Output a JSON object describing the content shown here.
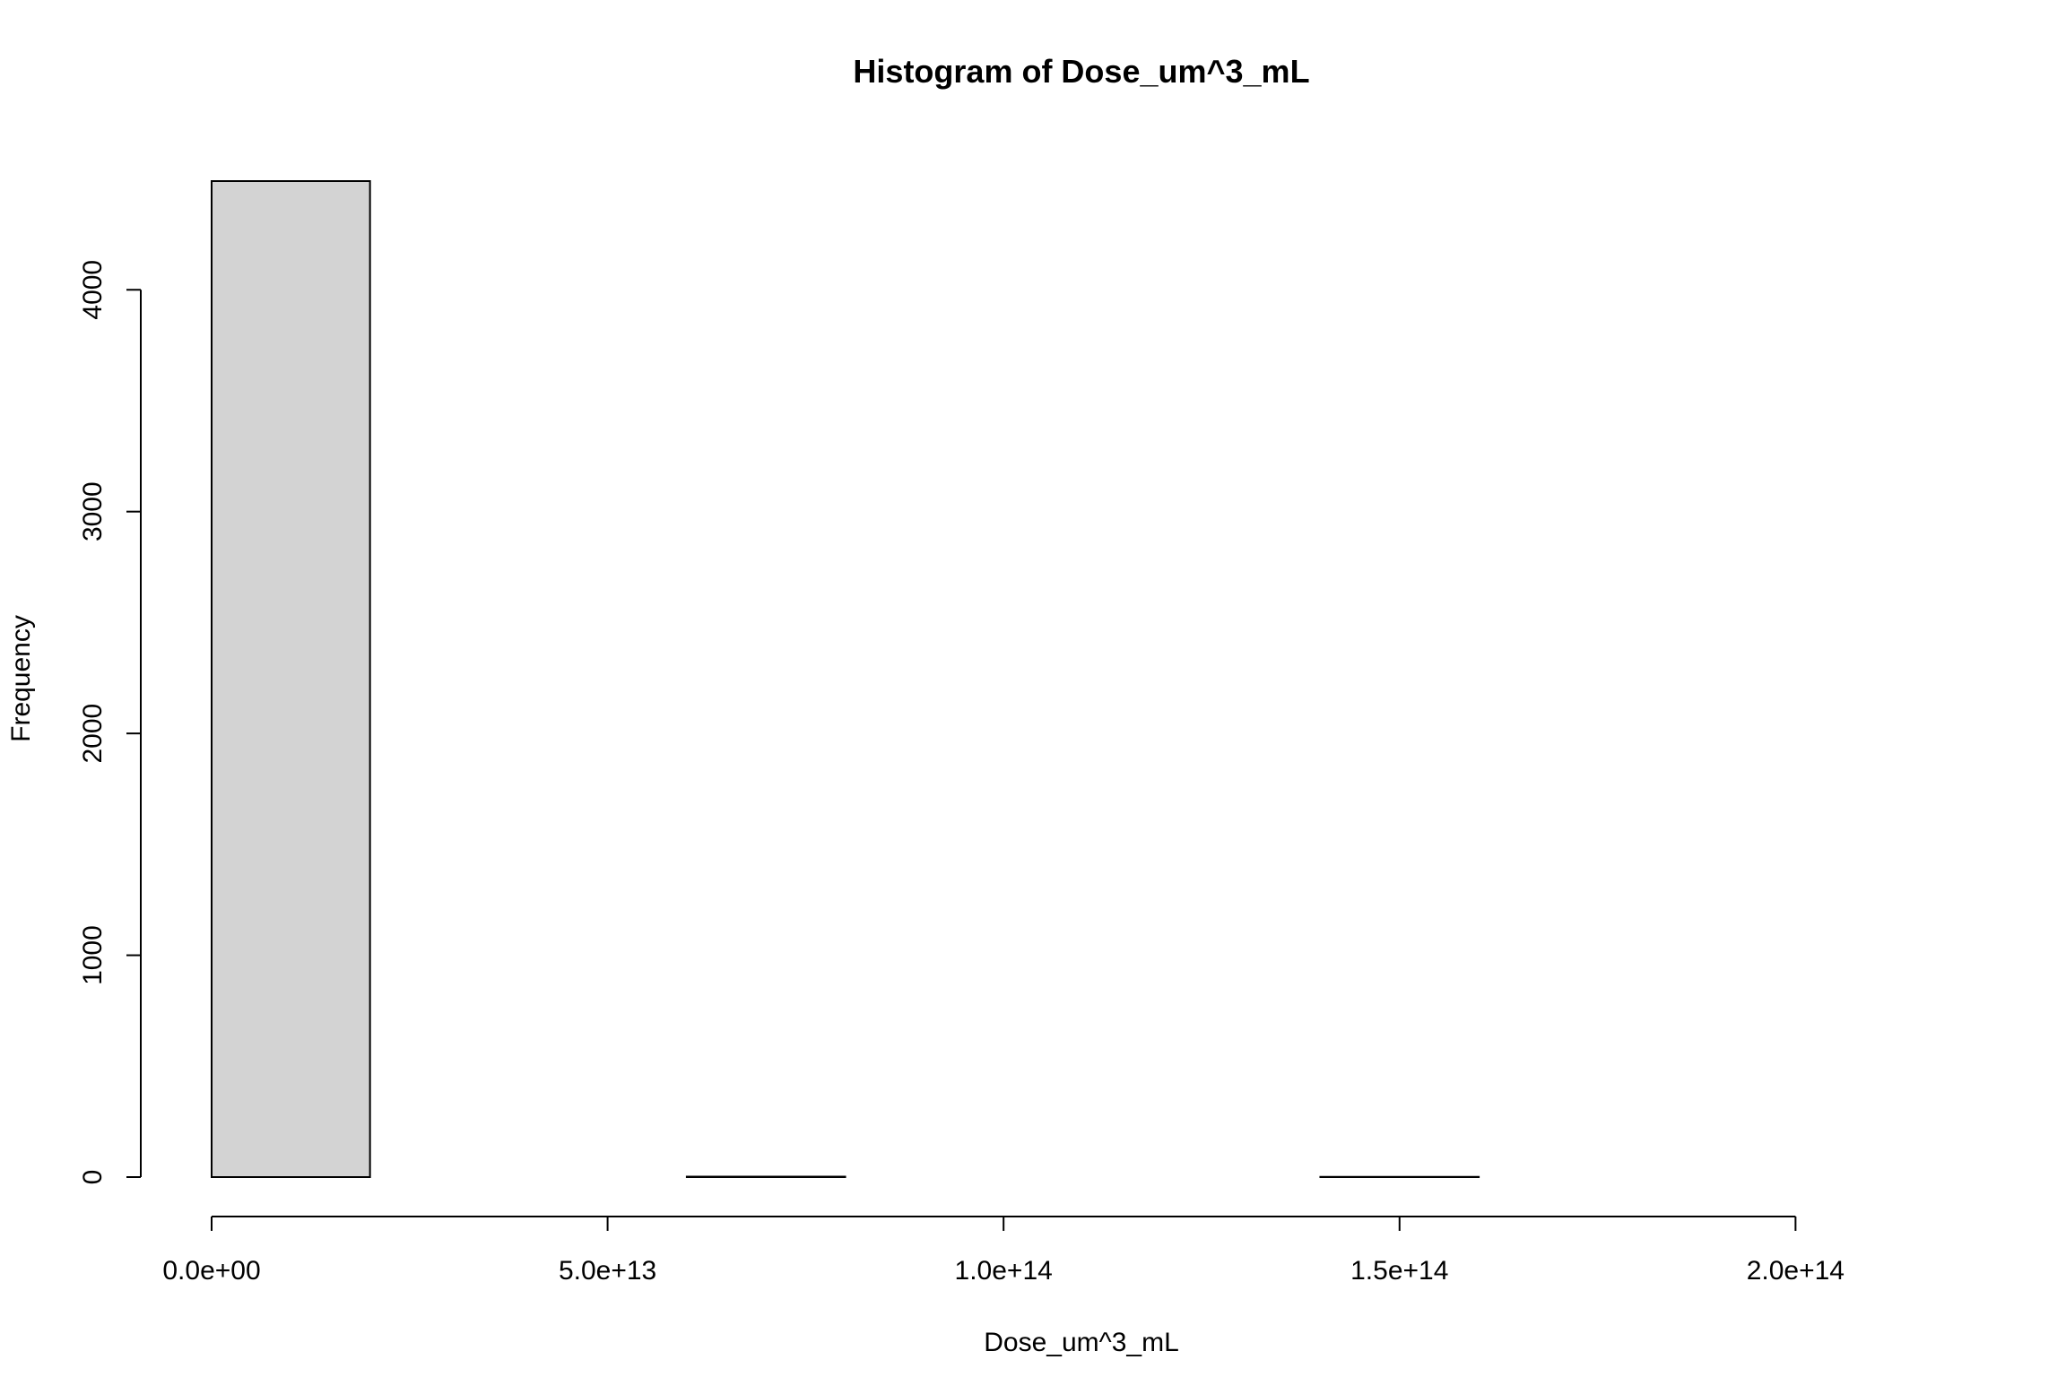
{
  "chart_data": {
    "type": "bar",
    "title": "Histogram of Dose_um^3_mL",
    "xlabel": "Dose_um^3_mL",
    "ylabel": "Frequency",
    "bins": [
      {
        "start": 0,
        "end": 20000000000000,
        "count": 4490
      },
      {
        "start": 20000000000000,
        "end": 40000000000000,
        "count": 0
      },
      {
        "start": 40000000000000,
        "end": 60000000000000,
        "count": 0
      },
      {
        "start": 60000000000000,
        "end": 80000000000000,
        "count": 2
      },
      {
        "start": 80000000000000,
        "end": 100000000000000,
        "count": 0
      },
      {
        "start": 100000000000000,
        "end": 120000000000000,
        "count": 0
      },
      {
        "start": 120000000000000,
        "end": 140000000000000,
        "count": 0
      },
      {
        "start": 140000000000000,
        "end": 160000000000000,
        "count": 1
      },
      {
        "start": 160000000000000,
        "end": 180000000000000,
        "count": 0
      },
      {
        "start": 180000000000000,
        "end": 200000000000000,
        "count": 0
      },
      {
        "start": 200000000000000,
        "end": 220000000000000,
        "count": 0
      }
    ],
    "x_ticks": [
      {
        "value": 0,
        "label": "0.0e+00"
      },
      {
        "value": 50000000000000,
        "label": "5.0e+13"
      },
      {
        "value": 100000000000000,
        "label": "1.0e+14"
      },
      {
        "value": 150000000000000,
        "label": "1.5e+14"
      },
      {
        "value": 200000000000000,
        "label": "2.0e+14"
      }
    ],
    "y_ticks": [
      {
        "value": 0,
        "label": "0"
      },
      {
        "value": 1000,
        "label": "1000"
      },
      {
        "value": 2000,
        "label": "2000"
      },
      {
        "value": 3000,
        "label": "3000"
      },
      {
        "value": 4000,
        "label": "4000"
      }
    ],
    "xlim": [
      0,
      220000000000000
    ],
    "ylim": [
      0,
      4490
    ],
    "grid": false,
    "bar_fill": "#d3d3d3",
    "line_color": "#000000"
  }
}
